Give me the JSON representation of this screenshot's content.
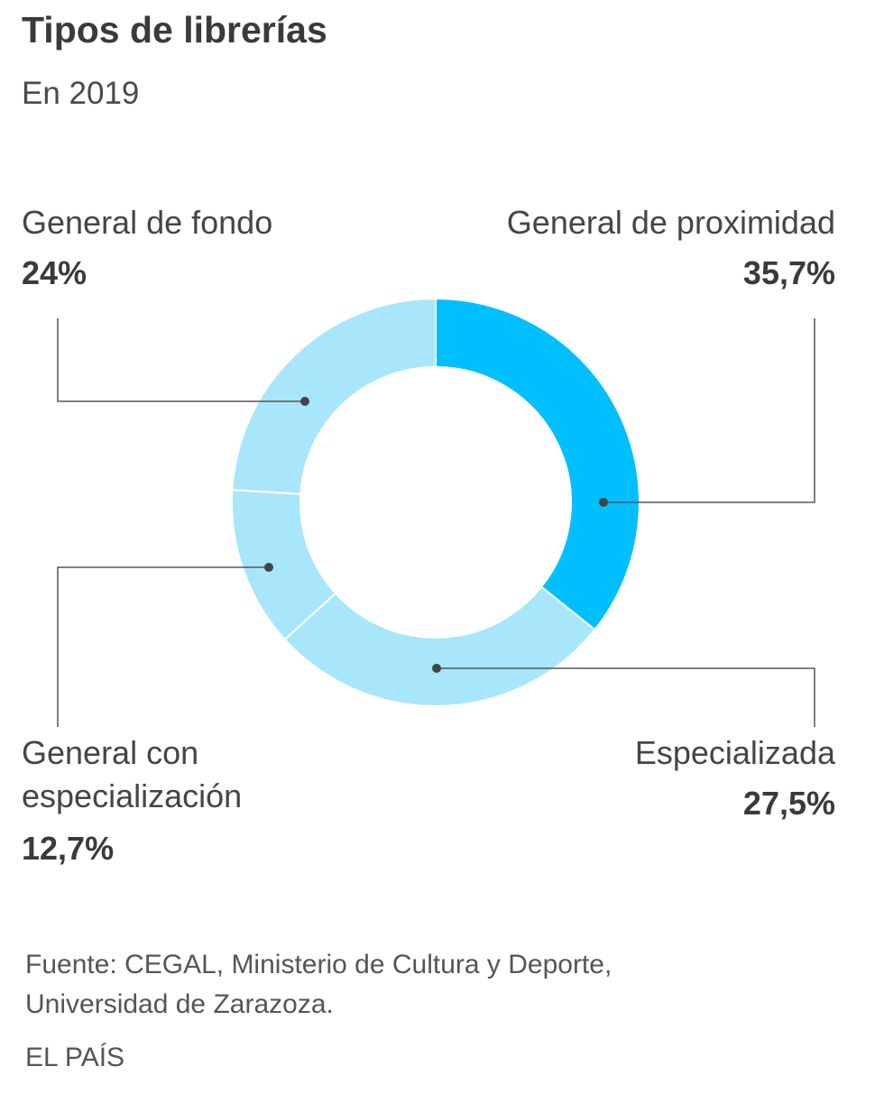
{
  "title": "Tipos de librerías",
  "subtitle": "En 2019",
  "chart_data": {
    "type": "pie",
    "style": "donut",
    "categories": [
      "General de proximidad",
      "Especializada",
      "General con especialización",
      "General de fondo"
    ],
    "values": [
      35.7,
      27.5,
      12.7,
      24.0
    ],
    "value_labels": [
      "35,7%",
      "27,5%",
      "12,7%",
      "24%"
    ],
    "colors": [
      "#00bfff",
      "#a8e6fc",
      "#a8e6fc",
      "#a8e6fc"
    ]
  },
  "labels": {
    "proximidad": {
      "name": "General de proximidad",
      "value": "35,7%"
    },
    "especializada": {
      "name": "Especializada",
      "value": "27,5%"
    },
    "con_esp_line1": "General con",
    "con_esp_line2": "especialización",
    "con_esp_value": "12,7%",
    "fondo": {
      "name": "General de fondo",
      "value": "24%"
    }
  },
  "source": {
    "line1": "Fuente: CEGAL, Ministerio de Cultura y Deporte,",
    "line2": "Universidad de Zarazoza."
  },
  "brand": "EL PAÍS"
}
